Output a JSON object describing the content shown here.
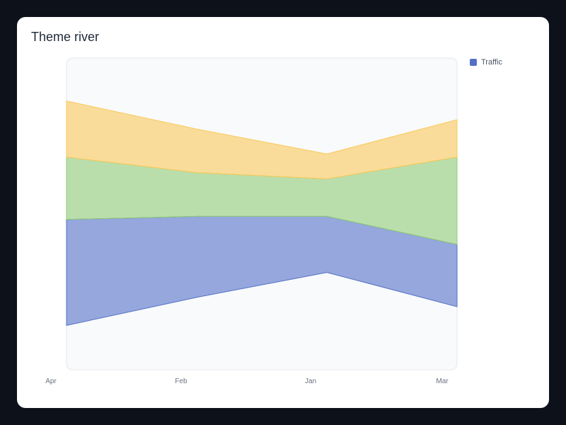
{
  "title": "Theme river",
  "legend": {
    "label": "Traffic",
    "color": "#5470c6"
  },
  "chart_data": {
    "type": "area",
    "subtype": "theme-river",
    "title": "Theme river",
    "categories": [
      "Apr",
      "Feb",
      "Jan",
      "Mar"
    ],
    "series": [
      {
        "name": "Traffic",
        "values": [
          34,
          26,
          18,
          20
        ],
        "color": "#5470c6"
      },
      {
        "values": [
          20,
          14,
          12,
          28
        ],
        "color": "#91cc75"
      },
      {
        "values": [
          18,
          14,
          8,
          12
        ],
        "color": "#fac858"
      }
    ],
    "legend_position": "top-right",
    "grid": false
  }
}
